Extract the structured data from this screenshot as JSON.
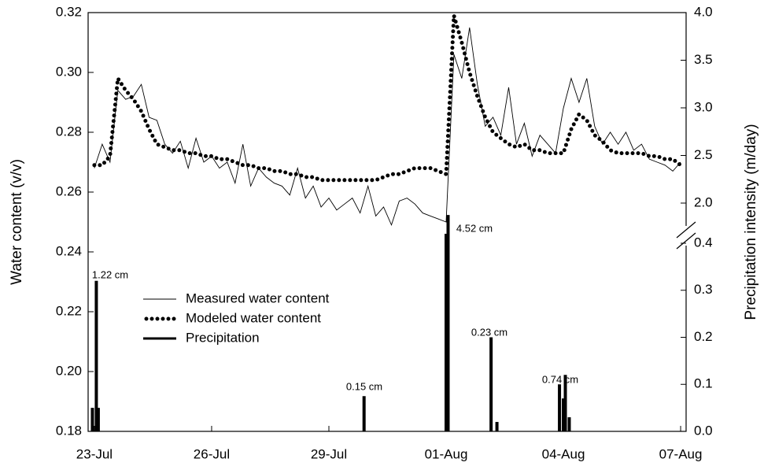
{
  "chart_data": {
    "type": "line",
    "y_label": "Water content (v/v)",
    "y2_label": "Precipitation intensity (m/day)",
    "xlim": [
      -0.16,
      15.14
    ],
    "xticks": [
      {
        "value": 0,
        "label": "23-Jul"
      },
      {
        "value": 3,
        "label": "26-Jul"
      },
      {
        "value": 6,
        "label": "29-Jul"
      },
      {
        "value": 9,
        "label": "01-Aug"
      },
      {
        "value": 12,
        "label": "04-Aug"
      },
      {
        "value": 15,
        "label": "07-Aug"
      }
    ],
    "ylim": [
      0.18,
      0.32
    ],
    "yticks": [
      0.18,
      {
        "value": 0.2,
        "label": "0.20"
      },
      0.22,
      0.24,
      0.26,
      0.28,
      {
        "value": 0.3,
        "label": "0.30"
      },
      0.32
    ],
    "y2lim": [
      0,
      0.4
    ],
    "y2ticks": [
      {
        "value": 0,
        "label": "0.0"
      },
      0.1,
      0.2,
      0.3,
      0.4
    ],
    "y2_upper_lim": [
      2,
      4
    ],
    "y2_upper_ticks": [
      {
        "value": 2,
        "label": "2.0"
      },
      2.5,
      {
        "value": 3,
        "label": "3.0"
      },
      3.5,
      {
        "value": 4,
        "label": "4.0"
      }
    ],
    "legend": "lower-left",
    "x": [
      0,
      0.2,
      0.4,
      0.6,
      0.8,
      1,
      1.2,
      1.4,
      1.6,
      1.8,
      2,
      2.2,
      2.4,
      2.6,
      2.8,
      3,
      3.2,
      3.4,
      3.6,
      3.8,
      4,
      4.2,
      4.4,
      4.6,
      4.8,
      5,
      5.2,
      5.4,
      5.6,
      5.8,
      6,
      6.2,
      6.4,
      6.6,
      6.8,
      7,
      7.2,
      7.4,
      7.6,
      7.8,
      8,
      8.2,
      8.4,
      8.6,
      8.8,
      9,
      9.2,
      9.4,
      9.6,
      9.8,
      10,
      10.2,
      10.4,
      10.6,
      10.8,
      11,
      11.2,
      11.4,
      11.6,
      11.8,
      12,
      12.2,
      12.4,
      12.6,
      12.8,
      13,
      13.2,
      13.4,
      13.6,
      13.8,
      14,
      14.2,
      14.4,
      14.6,
      14.8,
      15
    ],
    "series": [
      {
        "name": "Measured water content",
        "color": "#000000",
        "line_style": "thin",
        "values": [
          0.268,
          0.276,
          0.27,
          0.294,
          0.291,
          0.292,
          0.296,
          0.285,
          0.284,
          0.276,
          0.273,
          0.277,
          0.268,
          0.278,
          0.27,
          0.272,
          0.268,
          0.27,
          0.263,
          0.276,
          0.262,
          0.268,
          0.265,
          0.263,
          0.262,
          0.259,
          0.268,
          0.258,
          0.262,
          0.255,
          0.258,
          0.254,
          0.256,
          0.258,
          0.253,
          0.262,
          0.252,
          0.255,
          0.249,
          0.257,
          0.258,
          0.256,
          0.253,
          0.252,
          0.251,
          0.25,
          0.306,
          0.298,
          0.315,
          0.296,
          0.282,
          0.285,
          0.279,
          0.295,
          0.276,
          0.283,
          0.272,
          0.279,
          0.276,
          0.273,
          0.288,
          0.298,
          0.29,
          0.298,
          0.282,
          0.276,
          0.28,
          0.276,
          0.28,
          0.274,
          0.276,
          0.271,
          0.27,
          0.269,
          0.267,
          0.27
        ]
      },
      {
        "name": "Modeled water content",
        "color": "#000000",
        "line_style": "dotted",
        "values": [
          0.269,
          0.269,
          0.272,
          0.298,
          0.294,
          0.291,
          0.287,
          0.281,
          0.276,
          0.275,
          0.274,
          0.274,
          0.273,
          0.273,
          0.272,
          0.272,
          0.271,
          0.271,
          0.27,
          0.269,
          0.269,
          0.268,
          0.268,
          0.267,
          0.267,
          0.266,
          0.266,
          0.265,
          0.265,
          0.264,
          0.264,
          0.264,
          0.264,
          0.264,
          0.264,
          0.264,
          0.264,
          0.265,
          0.266,
          0.266,
          0.267,
          0.268,
          0.268,
          0.268,
          0.267,
          0.266,
          0.319,
          0.31,
          0.3,
          0.292,
          0.285,
          0.28,
          0.278,
          0.276,
          0.275,
          0.276,
          0.274,
          0.274,
          0.273,
          0.273,
          0.273,
          0.281,
          0.286,
          0.284,
          0.279,
          0.277,
          0.274,
          0.273,
          0.273,
          0.273,
          0.273,
          0.272,
          0.272,
          0.271,
          0.271,
          0.269
        ]
      },
      {
        "name": "Precipitation",
        "color": "#000000",
        "line_style": "bar",
        "axis": "y2",
        "x": [
          -0.05,
          0.05,
          0.1,
          6.9,
          9.0,
          9.05,
          10.15,
          10.3,
          11.9,
          12.0,
          12.05,
          12.15
        ],
        "values": [
          0.05,
          0.32,
          0.05,
          0.075,
          0.42,
          0.46,
          0.2,
          0.02,
          0.1,
          0.07,
          0.12,
          0.03
        ]
      }
    ],
    "annotations": [
      "1.22 cm",
      "0.15 cm",
      "4.52 cm",
      "0.23 cm",
      "0.74 cm"
    ]
  }
}
